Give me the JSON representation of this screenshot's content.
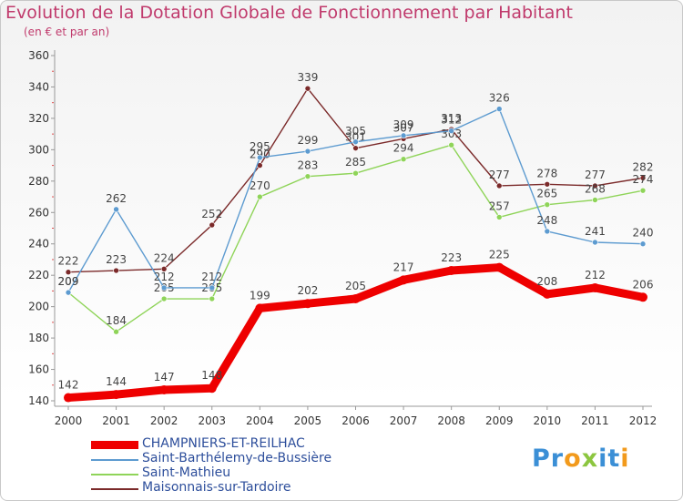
{
  "chart_data": {
    "type": "line",
    "title": "Evolution de la Dotation Globale de Fonctionnement par Habitant",
    "subtitle": "(en € et par an)",
    "xlabel": "",
    "ylabel": "",
    "x": [
      "2000",
      "2001",
      "2002",
      "2003",
      "2004",
      "2005",
      "2006",
      "2007",
      "2008",
      "2009",
      "2010",
      "2011",
      "2012"
    ],
    "ylim": [
      140,
      360
    ],
    "yticks": [
      140,
      160,
      180,
      200,
      220,
      240,
      260,
      280,
      300,
      320,
      340,
      360
    ],
    "grid": false,
    "legend_position": "bottom-left",
    "series": [
      {
        "name": "CHAMPNIERS-ET-REILHAC",
        "color": "#ee0000",
        "values": [
          142,
          144,
          147,
          148,
          199,
          202,
          205,
          217,
          223,
          225,
          208,
          212,
          206
        ]
      },
      {
        "name": "Saint-Barthélemy-de-Bussière",
        "color": "#5d9bd0",
        "values": [
          209,
          262,
          212,
          212,
          295,
          299,
          305,
          309,
          312,
          326,
          248,
          241,
          240
        ]
      },
      {
        "name": "Saint-Mathieu",
        "color": "#8fd459",
        "values": [
          209,
          184,
          205,
          205,
          270,
          283,
          285,
          294,
          303,
          257,
          265,
          268,
          274
        ]
      },
      {
        "name": "Maisonnais-sur-Tardoire",
        "color": "#7b2a2a",
        "values": [
          222,
          223,
          224,
          252,
          290,
          339,
          301,
          307,
          313,
          277,
          278,
          277,
          282
        ]
      }
    ]
  },
  "logo": {
    "text": "Proxiti",
    "letters": [
      "P",
      "r",
      "o",
      "x",
      "i",
      "t",
      "i"
    ],
    "colors": [
      "#3b8fd6",
      "#3b8fd6",
      "#f29a1c",
      "#8cc63f",
      "#3b8fd6",
      "#3b8fd6",
      "#f29a1c"
    ]
  }
}
